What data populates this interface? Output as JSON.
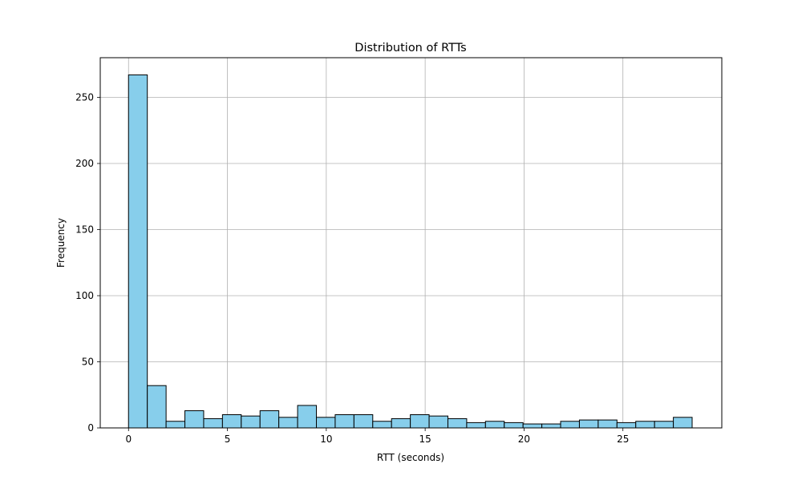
{
  "chart_data": {
    "type": "bar",
    "title": "Distribution of RTTs",
    "xlabel": "RTT (seconds)",
    "ylabel": "Frequency",
    "xlim": [
      -1.43,
      30.0
    ],
    "ylim": [
      0,
      280
    ],
    "xticks": [
      0,
      5,
      10,
      15,
      20,
      25
    ],
    "yticks": [
      0,
      50,
      100,
      150,
      200,
      250
    ],
    "grid": true,
    "bar_color": "#87CEEB",
    "edge_color": "#000000",
    "bin_edges": [
      0,
      0.95,
      1.9,
      2.85,
      3.8,
      4.75,
      5.7,
      6.65,
      7.6,
      8.55,
      9.5,
      10.45,
      11.4,
      12.35,
      13.3,
      14.25,
      15.2,
      16.15,
      17.1,
      18.05,
      19.0,
      19.95,
      20.9,
      21.85,
      22.8,
      23.75,
      24.7,
      25.65,
      26.6,
      27.55,
      28.5
    ],
    "values": [
      267,
      32,
      5,
      13,
      7,
      10,
      9,
      13,
      8,
      17,
      8,
      10,
      10,
      5,
      7,
      10,
      9,
      7,
      4,
      5,
      4,
      3,
      3,
      5,
      6,
      6,
      4,
      5,
      5,
      8
    ]
  }
}
